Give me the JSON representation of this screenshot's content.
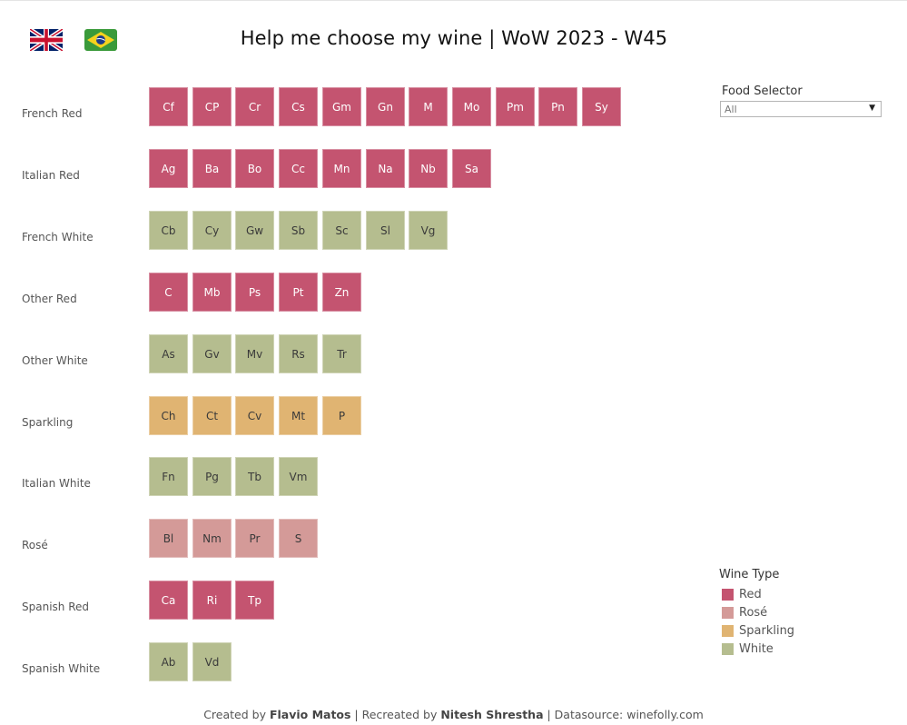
{
  "header": {
    "title": "Help me choose my wine | WoW 2023 - W45",
    "language_flags": [
      "uk-flag-icon",
      "brazil-flag-icon"
    ]
  },
  "colors": {
    "Red": "#c45470",
    "Rosé": "#d49a98",
    "Sparkling": "#e0b472",
    "White": "#b5bd8f"
  },
  "chart_data": {
    "type": "tile-grid",
    "categories": [
      "French Red",
      "Italian Red",
      "French White",
      "Other Red",
      "Other White",
      "Sparkling",
      "Italian White",
      "Rosé",
      "Spanish Red",
      "Spanish White"
    ],
    "rows": [
      {
        "label": "French Red",
        "items": [
          {
            "code": "Cf",
            "type": "Red"
          },
          {
            "code": "CP",
            "type": "Red"
          },
          {
            "code": "Cr",
            "type": "Red"
          },
          {
            "code": "Cs",
            "type": "Red"
          },
          {
            "code": "Gm",
            "type": "Red"
          },
          {
            "code": "Gn",
            "type": "Red"
          },
          {
            "code": "M",
            "type": "Red"
          },
          {
            "code": "Mo",
            "type": "Red"
          },
          {
            "code": "Pm",
            "type": "Red"
          },
          {
            "code": "Pn",
            "type": "Red"
          },
          {
            "code": "Sy",
            "type": "Red"
          }
        ]
      },
      {
        "label": "Italian Red",
        "items": [
          {
            "code": "Ag",
            "type": "Red"
          },
          {
            "code": "Ba",
            "type": "Red"
          },
          {
            "code": "Bo",
            "type": "Red"
          },
          {
            "code": "Cc",
            "type": "Red"
          },
          {
            "code": "Mn",
            "type": "Red"
          },
          {
            "code": "Na",
            "type": "Red"
          },
          {
            "code": "Nb",
            "type": "Red"
          },
          {
            "code": "Sa",
            "type": "Red"
          }
        ]
      },
      {
        "label": "French White",
        "items": [
          {
            "code": "Cb",
            "type": "White"
          },
          {
            "code": "Cy",
            "type": "White"
          },
          {
            "code": "Gw",
            "type": "White"
          },
          {
            "code": "Sb",
            "type": "White"
          },
          {
            "code": "Sc",
            "type": "White"
          },
          {
            "code": "Sl",
            "type": "White"
          },
          {
            "code": "Vg",
            "type": "White"
          }
        ]
      },
      {
        "label": "Other Red",
        "items": [
          {
            "code": "C",
            "type": "Red"
          },
          {
            "code": "Mb",
            "type": "Red"
          },
          {
            "code": "Ps",
            "type": "Red"
          },
          {
            "code": "Pt",
            "type": "Red"
          },
          {
            "code": "Zn",
            "type": "Red"
          }
        ]
      },
      {
        "label": "Other White",
        "items": [
          {
            "code": "As",
            "type": "White"
          },
          {
            "code": "Gv",
            "type": "White"
          },
          {
            "code": "Mv",
            "type": "White"
          },
          {
            "code": "Rs",
            "type": "White"
          },
          {
            "code": "Tr",
            "type": "White"
          }
        ]
      },
      {
        "label": "Sparkling",
        "items": [
          {
            "code": "Ch",
            "type": "Sparkling"
          },
          {
            "code": "Ct",
            "type": "Sparkling"
          },
          {
            "code": "Cv",
            "type": "Sparkling"
          },
          {
            "code": "Mt",
            "type": "Sparkling"
          },
          {
            "code": "P",
            "type": "Sparkling"
          }
        ]
      },
      {
        "label": "Italian White",
        "items": [
          {
            "code": "Fn",
            "type": "White"
          },
          {
            "code": "Pg",
            "type": "White"
          },
          {
            "code": "Tb",
            "type": "White"
          },
          {
            "code": "Vm",
            "type": "White"
          }
        ]
      },
      {
        "label": "Rosé",
        "items": [
          {
            "code": "Bl",
            "type": "Rosé"
          },
          {
            "code": "Nm",
            "type": "Rosé"
          },
          {
            "code": "Pr",
            "type": "Rosé"
          },
          {
            "code": "S",
            "type": "Rosé"
          }
        ]
      },
      {
        "label": "Spanish Red",
        "items": [
          {
            "code": "Ca",
            "type": "Red"
          },
          {
            "code": "Ri",
            "type": "Red"
          },
          {
            "code": "Tp",
            "type": "Red"
          }
        ]
      },
      {
        "label": "Spanish White",
        "items": [
          {
            "code": "Ab",
            "type": "White"
          },
          {
            "code": "Vd",
            "type": "White"
          }
        ]
      }
    ],
    "legend_title": "Wine Type",
    "legend": [
      "Red",
      "Rosé",
      "Sparkling",
      "White"
    ]
  },
  "food_selector": {
    "label": "Food Selector",
    "value": "All"
  },
  "footer": {
    "created_prefix": "Created by ",
    "creator": "Flavio Matos",
    "recreated_prefix": " | Recreated by ",
    "recreator": "Nitesh Shrestha",
    "datasource": " | Datasource: winefolly.com"
  }
}
